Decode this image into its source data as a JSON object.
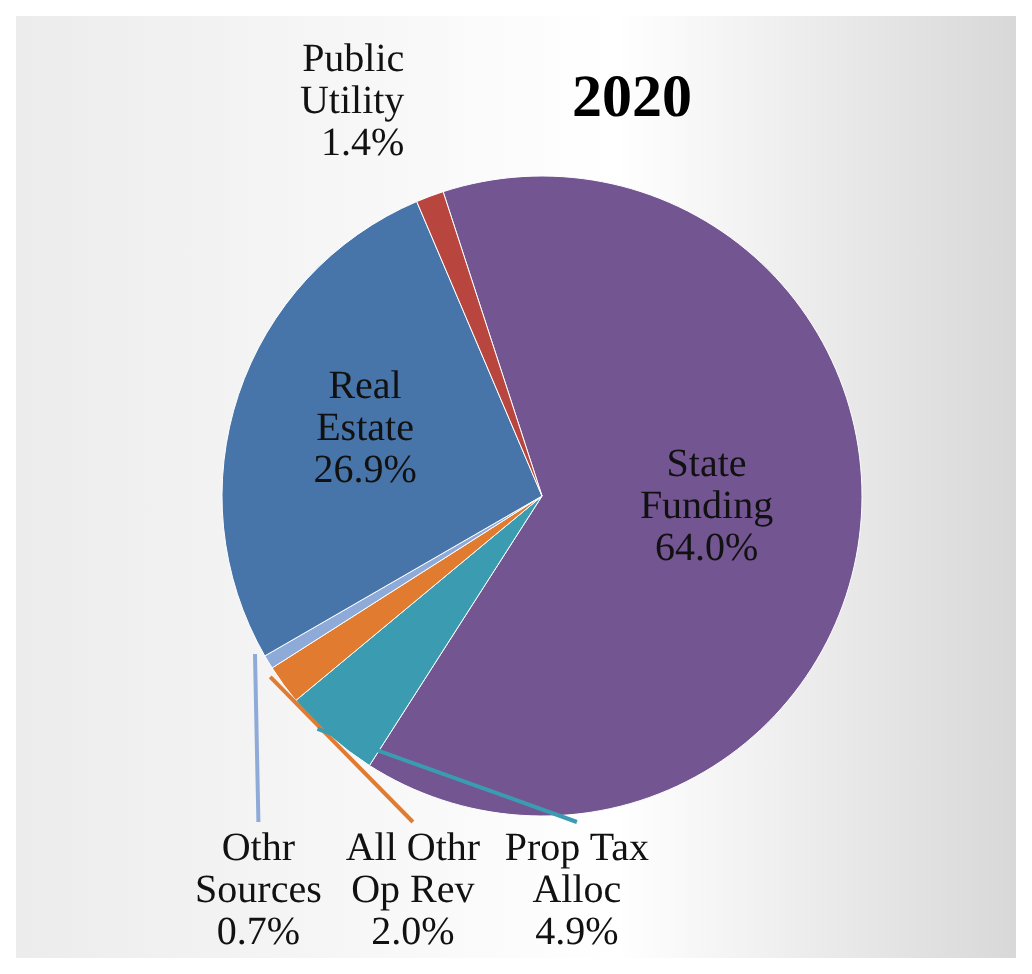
{
  "chart_data": {
    "type": "pie",
    "title": "2020",
    "categories": [
      "State Funding",
      "Prop Tax Alloc",
      "All Othr Op Rev",
      "Othr Sources",
      "Real Estate",
      "Public Utility"
    ],
    "values": [
      64.0,
      4.9,
      2.0,
      0.7,
      26.9,
      1.4
    ],
    "value_labels": [
      "64.0%",
      "4.9%",
      "2.0%",
      "0.7%",
      "26.9%",
      "1.4%"
    ],
    "colors": [
      "#735592",
      "#3b9bb0",
      "#e07b30",
      "#8eaad8",
      "#4775a9",
      "#b8463f"
    ]
  }
}
